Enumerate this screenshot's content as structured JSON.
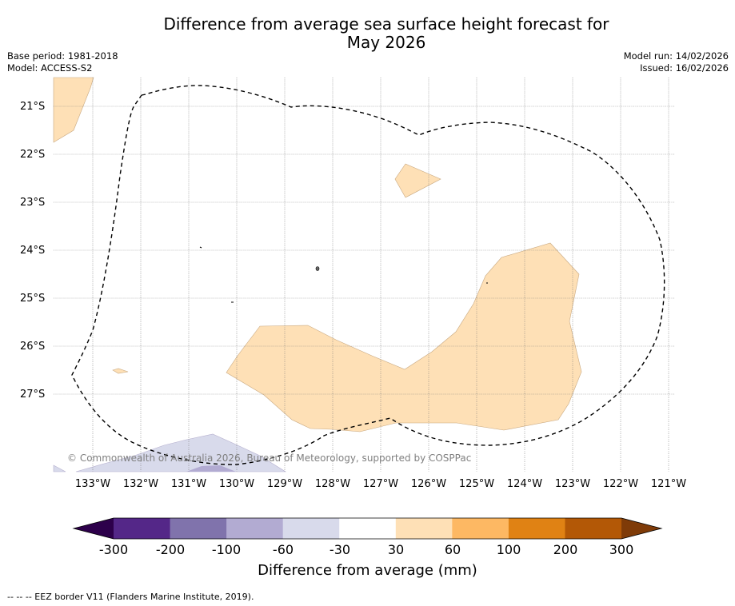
{
  "title_line1": "Difference from average sea surface height forecast for",
  "title_line2": "May 2026",
  "base_period": "Base period: 1981-2018",
  "model": "Model: ACCESS-S2",
  "model_run": "Model run: 14/02/2026",
  "issued": "Issued: 16/02/2026",
  "lat_labels": [
    "21°S",
    "22°S",
    "23°S",
    "24°S",
    "25°S",
    "26°S",
    "27°S"
  ],
  "lon_labels": [
    "133°W",
    "132°W",
    "131°W",
    "130°W",
    "129°W",
    "128°W",
    "127°W",
    "126°W",
    "125°W",
    "124°W",
    "123°W",
    "122°W",
    "121°W"
  ],
  "copyright": "© Commonwealth of Australia 2026, Bureau of Meteorology, supported by COSPPac",
  "colorbar": {
    "ticks": [
      "-300",
      "-200",
      "-100",
      "-60",
      "-30",
      "30",
      "60",
      "100",
      "200",
      "300"
    ],
    "colors": [
      "#2d004b",
      "#542788",
      "#8073ac",
      "#b2abd2",
      "#d8daeb",
      "#ffffff",
      "#fee0b6",
      "#fdb863",
      "#e08214",
      "#b35806",
      "#7f3b08"
    ],
    "label": "Difference from average (mm)"
  },
  "eez_note": "--  --  -- EEZ border V11 (Flanders Marine Institute, 2019)."
}
